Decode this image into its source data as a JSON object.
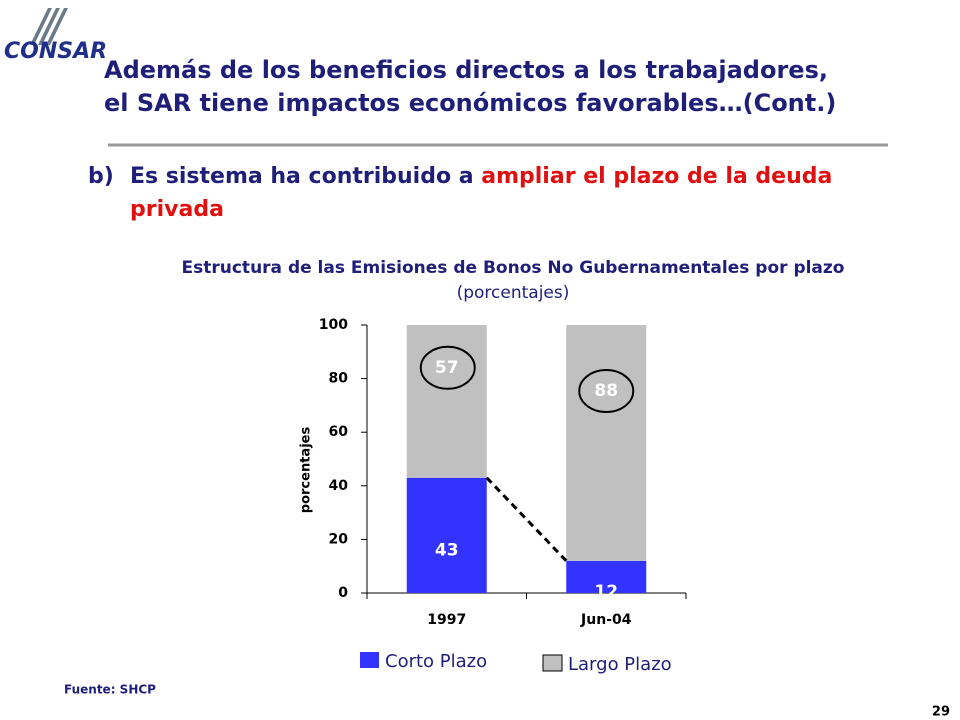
{
  "slide": {
    "logo": "CONSAR",
    "title_lines": [
      "Además de los beneficios directos a los trabajadores,",
      "el SAR tiene impactos económicos favorables…(Cont.)"
    ],
    "bullet": "b)",
    "point": {
      "lead": "Es sistema ha contribuido a ",
      "highlight": "ampliar el plazo de la deuda",
      "highlight_line2": "privada"
    },
    "source": "Fuente: SHCP",
    "page_number": "29"
  },
  "chart_data": {
    "type": "stacked_bar",
    "title": "Estructura de las Emisiones de Bonos No Gubernamentales por plazo",
    "subtitle": "(porcentajes)",
    "y_label": "porcentajes",
    "categories": [
      "1997",
      "Jun-04"
    ],
    "series": [
      {
        "name": "Corto Plazo",
        "color": "#3333ff",
        "values": [
          43,
          12
        ]
      },
      {
        "name": "Largo Plazo",
        "color": "#c0c0c0",
        "values": [
          57,
          88
        ],
        "label_circle": true
      }
    ],
    "ylim": [
      0,
      100
    ],
    "yticks": [
      0,
      20,
      40,
      60,
      80,
      100
    ]
  }
}
